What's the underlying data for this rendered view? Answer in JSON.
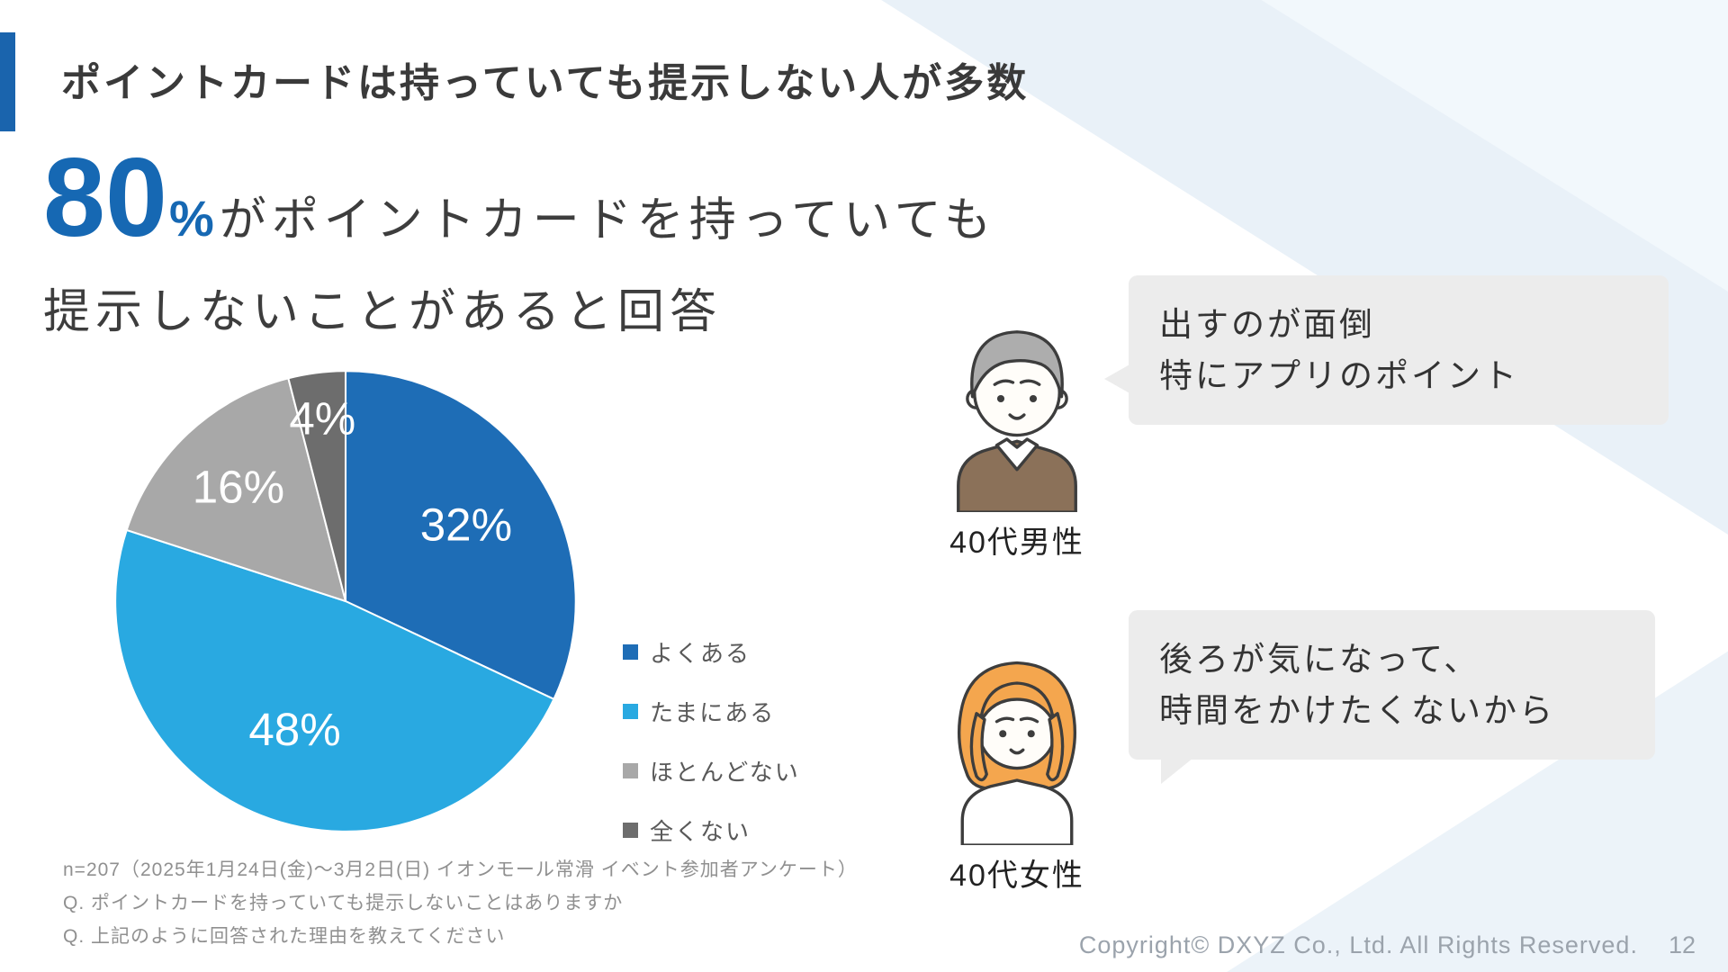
{
  "slide": {
    "title": "ポイントカードは持っていても提示しない人が多数",
    "headline": {
      "number": "80",
      "unit": "%",
      "after_number": "がポイントカードを持っていても",
      "line2": "提示しないことがあると回答"
    },
    "footnotes": [
      "n=207（2025年1月24日(金)〜3月2日(日) イオンモール常滑 イベント参加者アンケート）",
      "Q. ポイントカードを持っていても提示しないことはありますか",
      "Q. 上記のように回答された理由を教えてください"
    ],
    "personas": [
      {
        "label": "40代男性",
        "quote_lines": [
          "出すのが面倒",
          "特にアプリのポイント"
        ]
      },
      {
        "label": "40代女性",
        "quote_lines": [
          "後ろが気になって、",
          "時間をかけたくないから"
        ]
      }
    ],
    "footer": {
      "copyright": "Copyright© DXYZ Co., Ltd. All Rights Reserved.",
      "page_number": "12"
    },
    "accent_color": "#1a64ad"
  },
  "chart_data": {
    "type": "pie",
    "categories": [
      "よくある",
      "たまにある",
      "ほとんどない",
      "全くない"
    ],
    "values": [
      32,
      48,
      16,
      4
    ],
    "labels": [
      "32%",
      "48%",
      "16%",
      "4%"
    ],
    "colors": [
      "#1e6db6",
      "#29a9e1",
      "#a8a8a8",
      "#6d6d6d"
    ],
    "label_color": "#ffffff",
    "label_radius": [
      0.62,
      0.6,
      0.68,
      0.8
    ],
    "start_angle_deg": 0,
    "direction": "clockwise",
    "legend_position": "right"
  }
}
